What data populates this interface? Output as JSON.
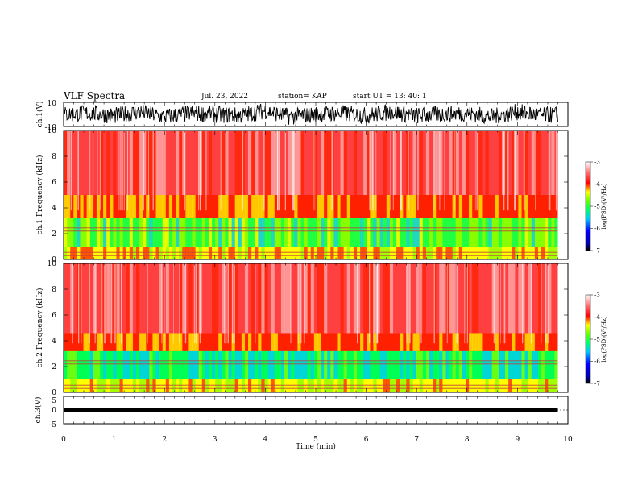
{
  "header": {
    "title": "VLF Spectra",
    "date": "Jul. 23, 2022",
    "station": "station= KAP",
    "start": "start UT = 13: 40: 1"
  },
  "chart_data": [
    {
      "type": "line",
      "panel": "waveform-ch1",
      "ylabel": "ch.1(V)",
      "ylim": [
        -10,
        10
      ],
      "yticks": [
        "10",
        "-10"
      ],
      "xlim": [
        0,
        10
      ],
      "x_end": 9.8,
      "series": [
        {
          "x": [
            0,
            0.5,
            1,
            1.5,
            2,
            2.5,
            3,
            3.5,
            4,
            4.5,
            5,
            5.5,
            6,
            6.5,
            7,
            7.5,
            8,
            8.5,
            9,
            9.5,
            9.8
          ],
          "values": [
            0,
            1,
            -1,
            2,
            -2,
            1,
            0,
            -1,
            3,
            -2,
            0,
            1,
            -1,
            2,
            -1,
            0,
            1,
            -2,
            2,
            -1,
            0
          ]
        }
      ]
    },
    {
      "type": "heatmap",
      "panel": "spectrogram-ch1",
      "ylabel": "ch.1 Frequency (kHz)",
      "ylim": [
        0,
        10
      ],
      "yticks": [
        "0",
        "2",
        "4",
        "6",
        "8",
        "10"
      ],
      "xlim": [
        0,
        10
      ],
      "x_end": 9.8,
      "colorbar": {
        "label": "log(PSD)(V²/Hz)",
        "range": [
          -7,
          -3
        ],
        "ticks": [
          "-3",
          "-4",
          "-5",
          "-6",
          "-7"
        ]
      },
      "bands": [
        {
          "f": [
            0,
            1
          ],
          "level": -4.3
        },
        {
          "f": [
            1,
            3.2
          ],
          "level": -4.8
        },
        {
          "f": [
            3.2,
            5
          ],
          "level": -4.0
        },
        {
          "f": [
            5,
            10
          ],
          "level": -3.4
        }
      ]
    },
    {
      "type": "heatmap",
      "panel": "spectrogram-ch2",
      "ylabel": "ch.2 Frequency (kHz)",
      "ylim": [
        0,
        10
      ],
      "yticks": [
        "0",
        "2",
        "4",
        "6",
        "8",
        "10"
      ],
      "xlim": [
        0,
        10
      ],
      "x_end": 9.8,
      "colorbar": {
        "label": "log(PSD)(V²/Hz)",
        "range": [
          -7,
          -3
        ],
        "ticks": [
          "-3",
          "-4",
          "-5",
          "-6",
          "-7"
        ]
      },
      "bands": [
        {
          "f": [
            0,
            1
          ],
          "level": -4.4
        },
        {
          "f": [
            1,
            3.2
          ],
          "level": -5.0
        },
        {
          "f": [
            3.2,
            4.6
          ],
          "level": -4.0
        },
        {
          "f": [
            4.6,
            10
          ],
          "level": -3.4
        }
      ]
    },
    {
      "type": "line",
      "panel": "waveform-ch3",
      "ylabel": "ch.3(V)",
      "ylim": [
        -5,
        5
      ],
      "yticks": [
        "5",
        "0",
        "-5"
      ],
      "xlim": [
        0,
        10
      ],
      "x_end": 9.8,
      "xlabel": "Time (min)",
      "xticks": [
        "0",
        "1",
        "2",
        "3",
        "4",
        "5",
        "6",
        "7",
        "8",
        "9",
        "10"
      ],
      "series": [
        {
          "x": [
            0,
            9.8
          ],
          "values": [
            0,
            0
          ]
        }
      ]
    }
  ]
}
